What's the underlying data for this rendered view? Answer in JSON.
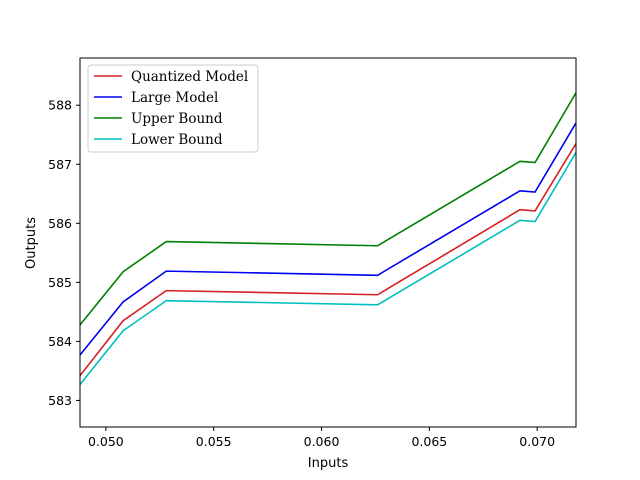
{
  "chart_data": {
    "type": "line",
    "title": "",
    "xlabel": "Inputs",
    "ylabel": "Outputs",
    "xlim": [
      0.0488,
      0.0718
    ],
    "ylim": [
      582.55,
      588.8
    ],
    "xticks": [
      "0.050",
      "0.055",
      "0.060",
      "0.065",
      "0.070"
    ],
    "xtick_values": [
      0.05,
      0.055,
      0.06,
      0.065,
      0.07
    ],
    "yticks": [
      "583",
      "584",
      "585",
      "586",
      "587",
      "588"
    ],
    "ytick_values": [
      583,
      584,
      585,
      586,
      587,
      588
    ],
    "grid": false,
    "legend_position": "top-left",
    "series": [
      {
        "name": "Quantized Model",
        "color": "#d62020",
        "x": [
          0.0488,
          0.0508,
          0.0528,
          0.0626,
          0.0692,
          0.0699,
          0.0718
        ],
        "y": [
          583.42,
          584.35,
          584.86,
          584.79,
          586.23,
          586.21,
          587.35
        ]
      },
      {
        "name": "Large Model",
        "color": "#0000ee",
        "x": [
          0.0488,
          0.0508,
          0.0528,
          0.0626,
          0.0692,
          0.0699,
          0.0718
        ],
        "y": [
          583.77,
          584.67,
          585.19,
          585.12,
          586.55,
          586.53,
          587.7
        ]
      },
      {
        "name": "Upper Bound",
        "color": "#008000",
        "x": [
          0.0488,
          0.0508,
          0.0528,
          0.0626,
          0.0692,
          0.0699,
          0.0718
        ],
        "y": [
          584.28,
          585.18,
          585.69,
          585.62,
          587.05,
          587.03,
          588.21
        ]
      },
      {
        "name": "Lower Bound",
        "color": "#00bfbf",
        "x": [
          0.0488,
          0.0508,
          0.0528,
          0.0626,
          0.0692,
          0.0699,
          0.0718
        ],
        "y": [
          583.27,
          584.18,
          584.69,
          584.62,
          586.05,
          586.03,
          587.2
        ]
      }
    ]
  }
}
